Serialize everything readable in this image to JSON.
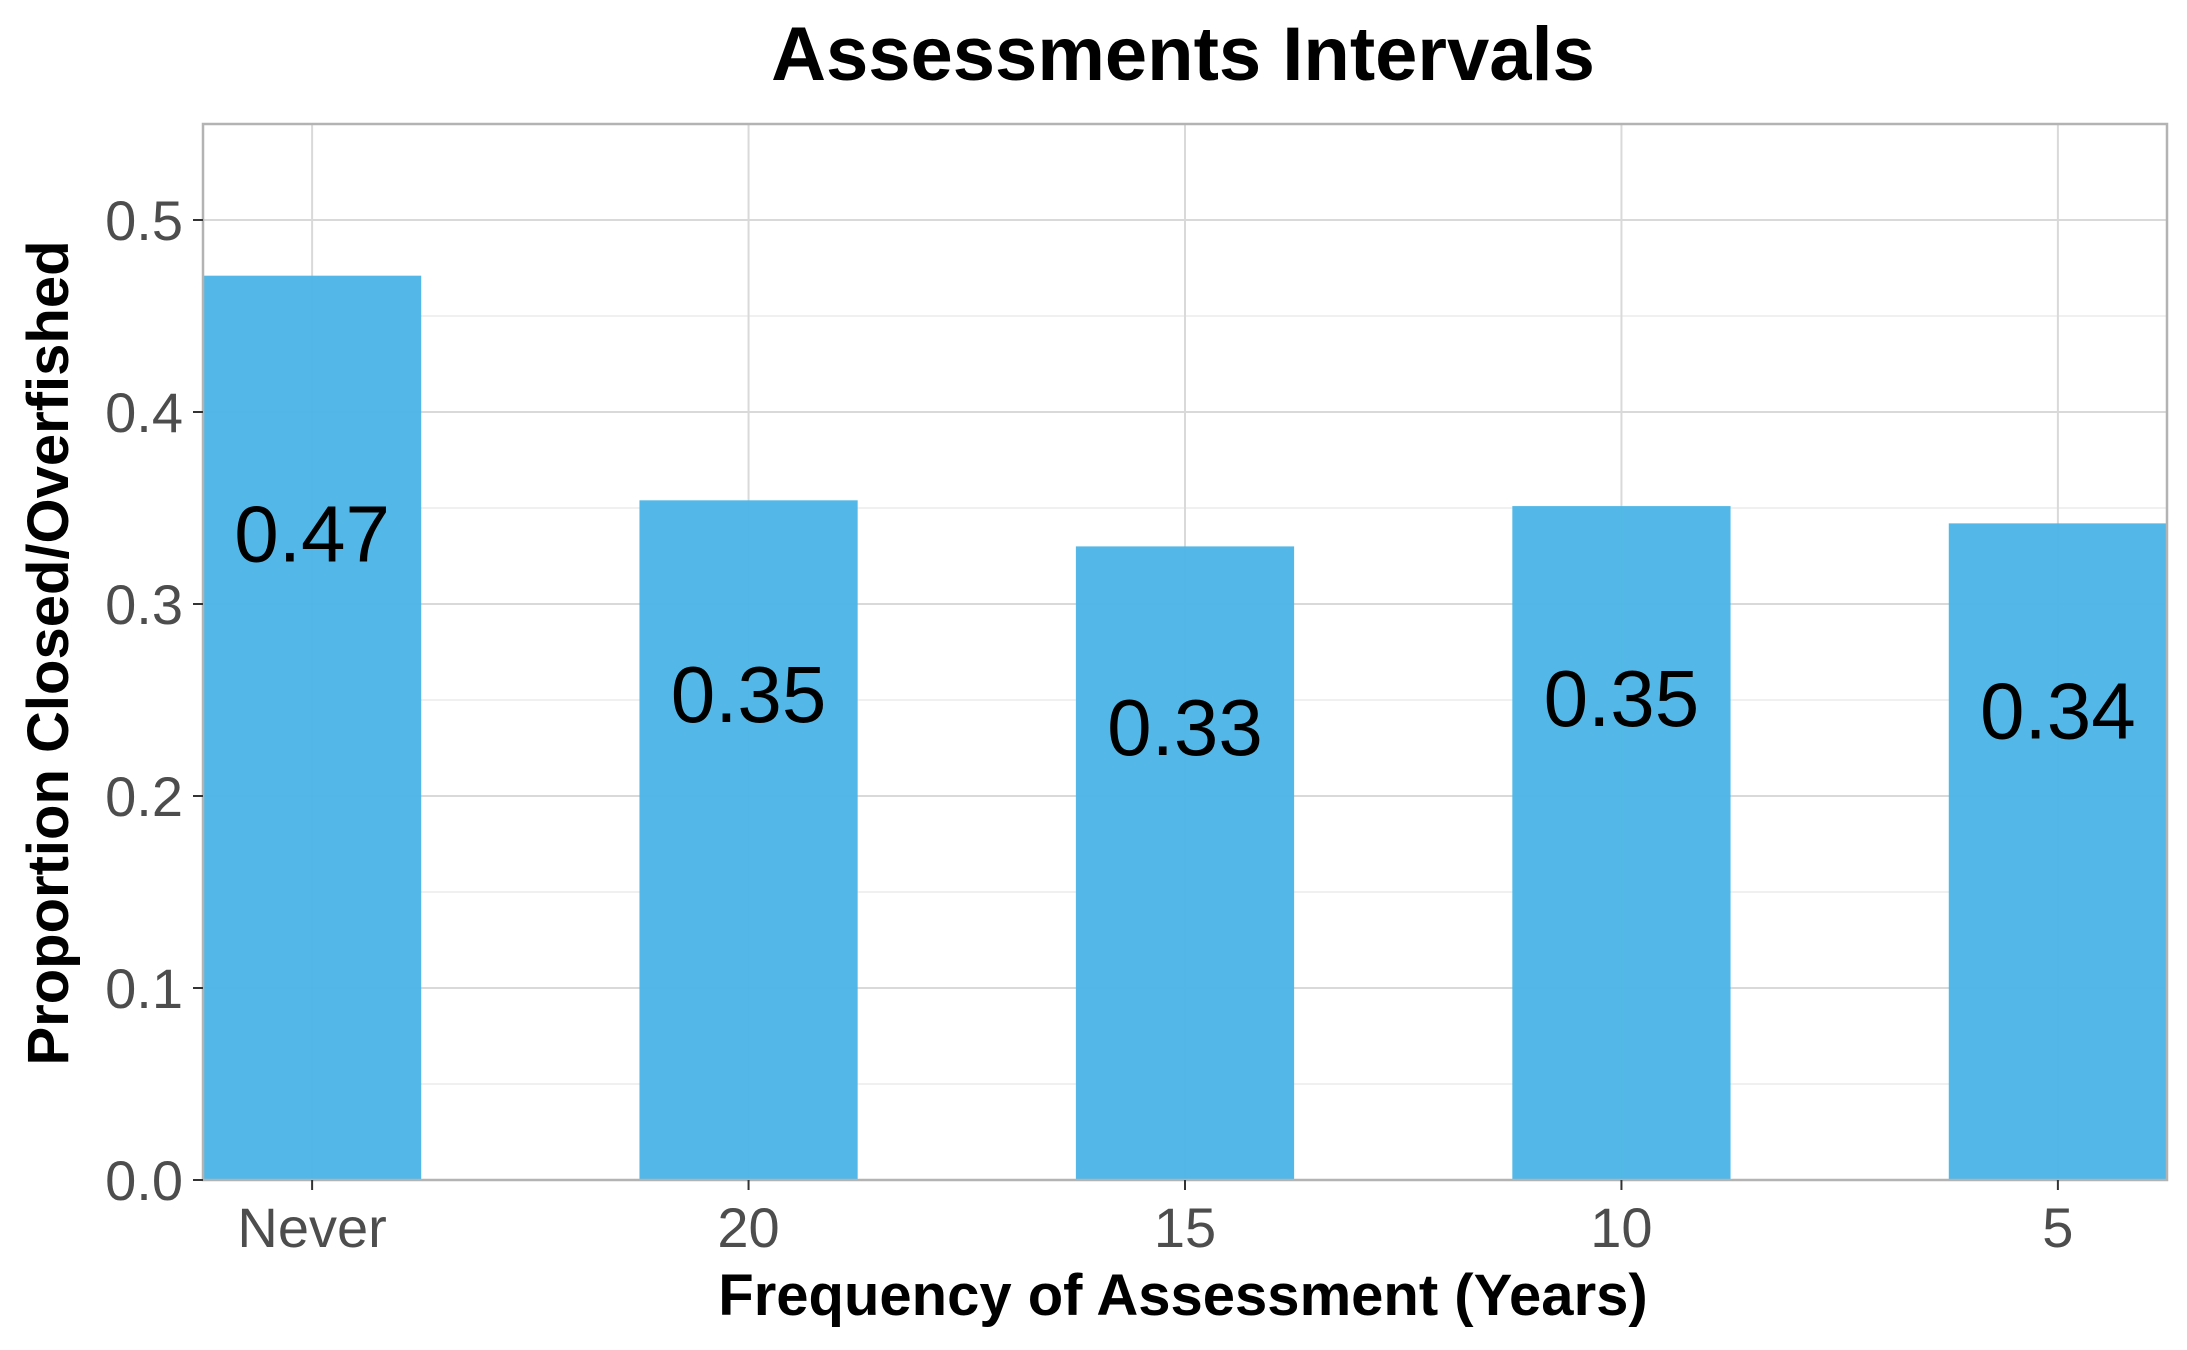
{
  "chart_data": {
    "type": "bar",
    "title": "Assessments Intervals",
    "xlabel": "Frequency of Assessment (Years)",
    "ylabel": "Proportion Closed/Overfished",
    "categories": [
      "Never",
      "20",
      "15",
      "10",
      "5"
    ],
    "values": [
      0.471,
      0.354,
      0.33,
      0.351,
      0.342
    ],
    "data_labels": [
      "0.47",
      "0.35",
      "0.33",
      "0.35",
      "0.34"
    ],
    "ylim": [
      0,
      0.55
    ],
    "yticks": [
      0.0,
      0.1,
      0.2,
      0.3,
      0.4,
      0.5
    ],
    "ytick_labels": [
      "0.0",
      "0.1",
      "0.2",
      "0.3",
      "0.4",
      "0.5"
    ],
    "grid": true,
    "legend": "none",
    "bar_color": "#4db6e6"
  }
}
